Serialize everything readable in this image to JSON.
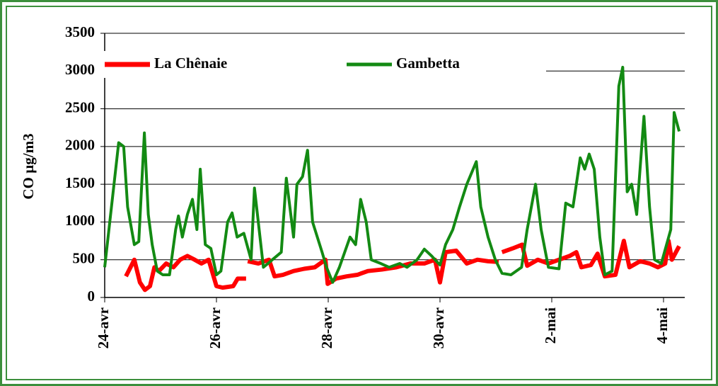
{
  "chart_data": {
    "type": "line",
    "ylabel": "CO µg/m3",
    "xlim": [
      0,
      10.38
    ],
    "xticks": [
      {
        "value": 0,
        "label": "24-avr"
      },
      {
        "value": 2,
        "label": "26-avr"
      },
      {
        "value": 4,
        "label": "28-avr"
      },
      {
        "value": 6,
        "label": "30-avr"
      },
      {
        "value": 8,
        "label": "2-mai"
      },
      {
        "value": 10,
        "label": "4-mai"
      }
    ],
    "ylim": [
      0,
      3500
    ],
    "yticks": [
      0,
      500,
      1000,
      1500,
      2000,
      2500,
      3000,
      3500
    ],
    "grid": true,
    "legend": "top",
    "series": [
      {
        "name": "La Chênaie",
        "color": "#ff0000",
        "x": [
          0.38,
          0.53,
          0.63,
          0.72,
          0.81,
          0.89,
          0.97,
          1.1,
          1.23,
          1.35,
          1.48,
          1.61,
          1.73,
          1.86,
          2.0,
          2.11,
          2.3,
          2.38,
          2.53,
          2.54,
          2.56,
          2.75,
          2.94,
          3.04,
          3.19,
          3.38,
          3.57,
          3.76,
          3.95,
          3.99,
          4.14,
          4.33,
          4.52,
          4.71,
          4.96,
          5.22,
          5.47,
          5.72,
          5.91,
          6.0,
          6.1,
          6.29,
          6.48,
          6.67,
          6.86,
          7.05,
          7.08,
          7.11,
          7.3,
          7.47,
          7.56,
          7.75,
          7.94,
          8.13,
          8.32,
          8.44,
          8.53,
          8.7,
          8.82,
          8.95,
          9.14,
          9.29,
          9.39,
          9.58,
          9.75,
          9.9,
          10.03,
          10.09,
          10.15,
          10.28
        ],
        "values": [
          280,
          500,
          200,
          100,
          150,
          400,
          350,
          450,
          400,
          500,
          550,
          500,
          450,
          500,
          150,
          130,
          150,
          250,
          250,
          null,
          480,
          450,
          500,
          280,
          300,
          350,
          380,
          400,
          500,
          180,
          250,
          280,
          300,
          350,
          370,
          400,
          450,
          450,
          500,
          200,
          600,
          620,
          450,
          500,
          480,
          470,
          null,
          600,
          650,
          700,
          420,
          500,
          450,
          500,
          550,
          600,
          400,
          430,
          580,
          280,
          300,
          750,
          400,
          480,
          450,
          400,
          450,
          750,
          500,
          680
        ]
      },
      {
        "name": "Gambetta",
        "color": "#138a13",
        "x": [
          0,
          0.25,
          0.34,
          0.41,
          0.53,
          0.61,
          0.71,
          0.78,
          0.85,
          0.94,
          1.04,
          1.16,
          1.27,
          1.32,
          1.39,
          1.48,
          1.57,
          1.65,
          1.71,
          1.8,
          1.9,
          2.0,
          2.08,
          2.2,
          2.28,
          2.37,
          2.49,
          2.62,
          2.68,
          2.84,
          3.0,
          3.16,
          3.25,
          3.38,
          3.44,
          3.54,
          3.63,
          3.72,
          3.89,
          3.97,
          4.08,
          4.2,
          4.39,
          4.49,
          4.58,
          4.68,
          4.77,
          4.94,
          5.09,
          5.28,
          5.41,
          5.59,
          5.72,
          5.85,
          6.0,
          6.1,
          6.23,
          6.35,
          6.48,
          6.65,
          6.73,
          6.86,
          6.99,
          7.11,
          7.27,
          7.46,
          7.56,
          7.71,
          7.81,
          7.94,
          8.13,
          8.25,
          8.38,
          8.51,
          8.59,
          8.67,
          8.76,
          8.86,
          8.95,
          9.08,
          9.2,
          9.27,
          9.35,
          9.43,
          9.52,
          9.65,
          9.75,
          9.84,
          9.96,
          10.13,
          10.19,
          10.28
        ],
        "values": [
          400,
          2050,
          2000,
          1200,
          700,
          740,
          2180,
          1100,
          700,
          350,
          300,
          300,
          900,
          1080,
          800,
          1100,
          1300,
          900,
          1700,
          700,
          650,
          300,
          350,
          1000,
          1120,
          800,
          850,
          500,
          1450,
          400,
          500,
          600,
          1580,
          800,
          1500,
          1600,
          1950,
          1000,
          600,
          400,
          200,
          400,
          800,
          700,
          1300,
          1000,
          500,
          450,
          400,
          450,
          400,
          500,
          640,
          550,
          430,
          700,
          900,
          1200,
          1500,
          1800,
          1200,
          800,
          500,
          320,
          300,
          400,
          900,
          1500,
          900,
          400,
          380,
          1250,
          1200,
          1850,
          1700,
          1900,
          1700,
          800,
          300,
          350,
          2800,
          3050,
          1400,
          1500,
          1100,
          2400,
          1200,
          500,
          450,
          900,
          2450,
          2200
        ]
      }
    ]
  }
}
